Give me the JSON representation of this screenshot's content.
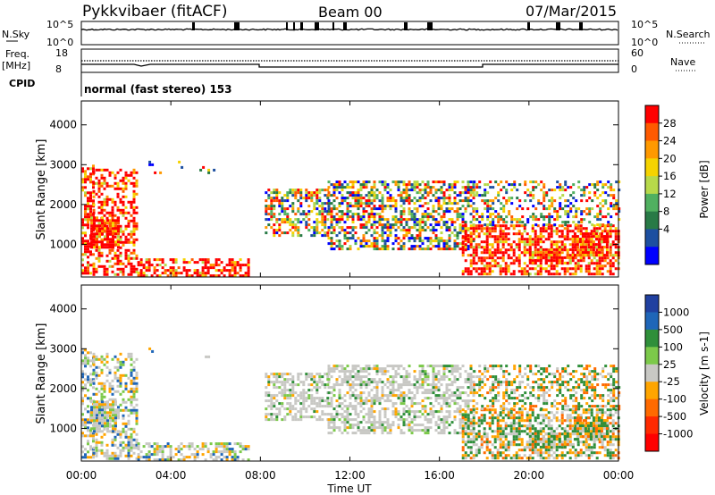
{
  "header": {
    "station": "Pykkvibaer (fitACF)",
    "beam": "Beam 00",
    "date": "07/Mar/2015"
  },
  "top_panels": {
    "nsky_label": "N.Sky",
    "nsky_ticks": [
      "10^5",
      "10^0"
    ],
    "nsearch_label": "N.Search",
    "nsearch_ticks": [
      "10^5",
      "10^0"
    ],
    "freq_label": "Freq.",
    "freq_unit": "[MHz]",
    "freq_ticks": [
      "18",
      "8"
    ],
    "nave_label": "Nave",
    "nave_ticks": [
      "60",
      "0"
    ],
    "cpid_label": "CPID",
    "cpid_value": "normal (fast stereo) 153"
  },
  "chart_data": [
    {
      "type": "heatmap",
      "name_panel": "power",
      "ylabel": "Slant Range [km]",
      "ylim": [
        180,
        4600
      ],
      "y_ticks": [
        "4000",
        "3000",
        "2000",
        "1000"
      ],
      "y_tick_values": [
        4000,
        3000,
        2000,
        1000
      ],
      "colorbar_label": "Power [dB]",
      "colorbar_ticks": [
        "28",
        "24",
        "20",
        "16",
        "12",
        "8",
        "4"
      ],
      "colorbar_colors": [
        "#ff0000",
        "#ff5a00",
        "#ff9900",
        "#f5d300",
        "#b7d94a",
        "#50b060",
        "#287a46",
        "#1d4fa0",
        "#0000ff"
      ]
    },
    {
      "type": "heatmap",
      "name_panel": "velocity",
      "ylabel": "Slant Range [km]",
      "ylim": [
        180,
        4600
      ],
      "y_ticks": [
        "4000",
        "3000",
        "2000",
        "1000"
      ],
      "y_tick_values": [
        4000,
        3000,
        2000,
        1000
      ],
      "colorbar_label": "Velocity [m s-1]",
      "colorbar_ticks": [
        "1000",
        "500",
        "100",
        "25",
        "-25",
        "-100",
        "-500",
        "-1000"
      ],
      "colorbar_colors": [
        "#2040a0",
        "#1f66b8",
        "#2f8f3a",
        "#7cc94a",
        "#c8c8c4",
        "#ffa500",
        "#ff6a00",
        "#ff2a00",
        "#ff0000"
      ]
    }
  ],
  "x_axis": {
    "label": "Time UT",
    "ticks": [
      "00:00",
      "04:00",
      "08:00",
      "12:00",
      "16:00",
      "20:00",
      "00:00"
    ]
  }
}
